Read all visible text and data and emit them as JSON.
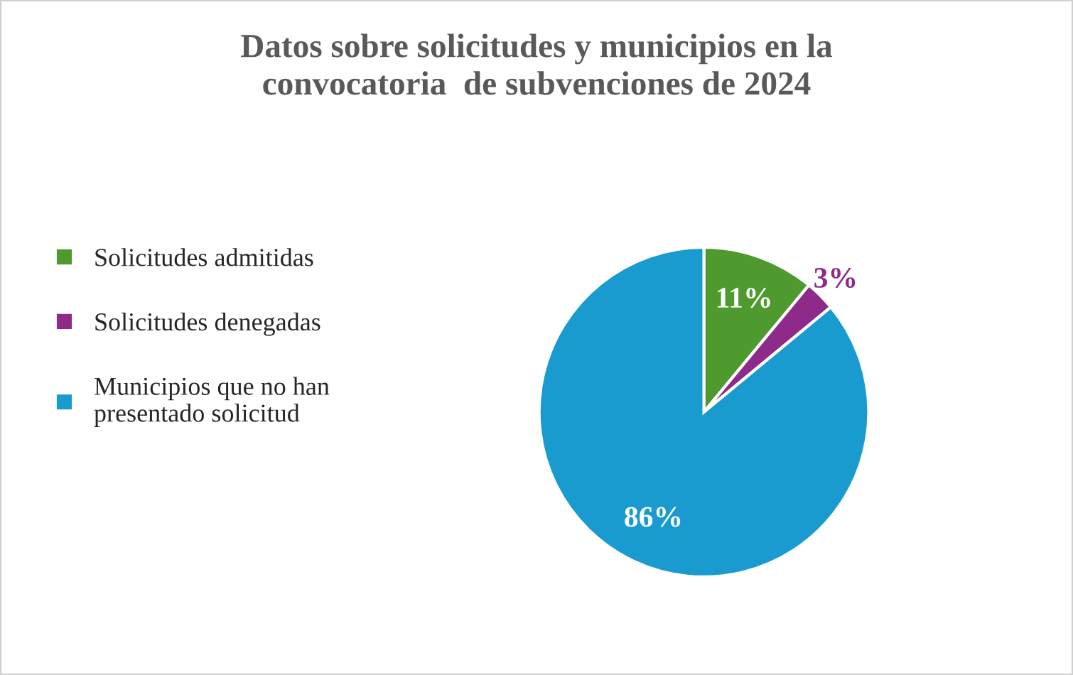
{
  "chart_data": {
    "type": "pie",
    "title": "Datos sobre solicitudes y municipios en la\nconvocatoria  de subvenciones de 2024",
    "categories": [
      "Solicitudes admitidas",
      "Solicitudes denegadas",
      "Municipios que no han\npresentado solicitud"
    ],
    "values": [
      11,
      3,
      86
    ],
    "value_labels": [
      "11%",
      "3%",
      "86%"
    ],
    "colors": [
      "#4e9a2e",
      "#8e2a8a",
      "#1a9bd0"
    ],
    "legend": "left"
  }
}
